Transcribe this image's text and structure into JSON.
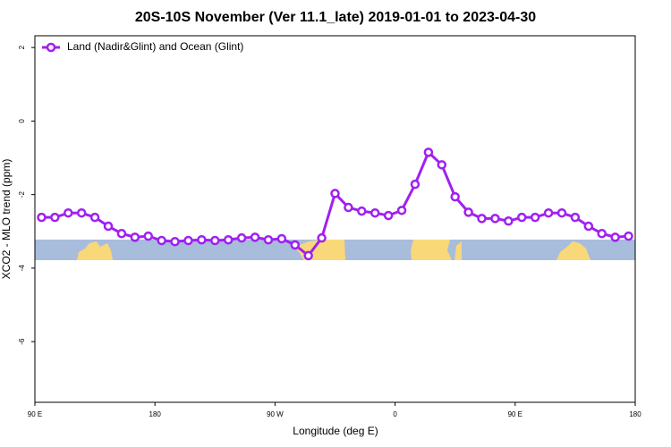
{
  "chart_data": {
    "type": "line",
    "title": "20S-10S November (Ver 11.1_late)   2019-01-01 to 2023-04-30",
    "x_label": "Longitude (deg E)",
    "y_label": "XCO2 - MLO trend (ppm)",
    "x": [
      95,
      105,
      115,
      125,
      135,
      145,
      155,
      165,
      175,
      185,
      195,
      205,
      215,
      225,
      235,
      245,
      255,
      265,
      275,
      285,
      295,
      305,
      315,
      325,
      335,
      345,
      355,
      365,
      375,
      385,
      395,
      405,
      415,
      425,
      435,
      445,
      455,
      465,
      475,
      485,
      495,
      505,
      515,
      525,
      535
    ],
    "series": [
      {
        "name": "Land (Nadir&Glint) and Ocean (Glint)",
        "color": "#a020f0",
        "values": [
          -2.62,
          -2.62,
          -2.5,
          -2.5,
          -2.62,
          -2.86,
          -3.06,
          -3.16,
          -3.13,
          -3.25,
          -3.28,
          -3.25,
          -3.23,
          -3.25,
          -3.23,
          -3.18,
          -3.16,
          -3.23,
          -3.2,
          -3.37,
          -3.66,
          -3.18,
          -1.97,
          -2.35,
          -2.45,
          -2.5,
          -2.57,
          -2.43,
          -1.72,
          -0.85,
          -1.19,
          -2.06,
          -2.48,
          -2.65,
          -2.65,
          -2.72,
          -2.62,
          -2.62,
          -2.5,
          -2.5,
          -2.62,
          -2.86,
          -3.06,
          -3.16,
          -3.13
        ]
      }
    ],
    "xlim": [
      90,
      540
    ],
    "ylim": [
      -7.65,
      2.32
    ],
    "xticks": [
      {
        "value": 90,
        "label": "90 E"
      },
      180,
      {
        "value": 270,
        "label": "90 W"
      },
      {
        "value": 360,
        "label": "0"
      },
      {
        "value": 450,
        "label": "90 E"
      },
      {
        "value": 540,
        "label": "180"
      }
    ],
    "yticks": [
      2,
      0,
      -2,
      -4,
      -6
    ],
    "legend": "top-left"
  }
}
